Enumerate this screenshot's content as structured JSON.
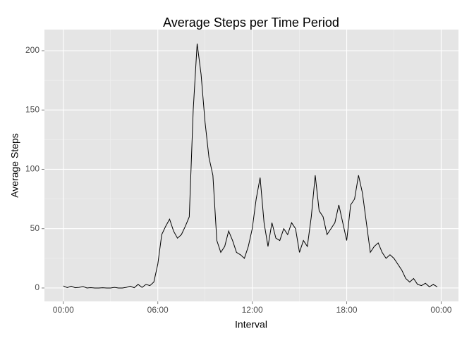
{
  "chart_data": {
    "type": "line",
    "title": "Average Steps per Time Period",
    "x_label": "Interval",
    "y_label": "Average Steps",
    "x": [
      0,
      0.25,
      0.5,
      0.75,
      1,
      1.25,
      1.5,
      1.75,
      2,
      2.25,
      2.5,
      2.75,
      3,
      3.25,
      3.5,
      3.75,
      4,
      4.25,
      4.5,
      4.75,
      5,
      5.25,
      5.5,
      5.75,
      6,
      6.25,
      6.5,
      6.75,
      7,
      7.25,
      7.5,
      7.75,
      8,
      8.25,
      8.5,
      8.75,
      9,
      9.25,
      9.5,
      9.75,
      10,
      10.25,
      10.5,
      10.75,
      11,
      11.25,
      11.5,
      11.75,
      12,
      12.25,
      12.5,
      12.75,
      13,
      13.25,
      13.5,
      13.75,
      14,
      14.25,
      14.5,
      14.75,
      15,
      15.25,
      15.5,
      15.75,
      16,
      16.25,
      16.5,
      16.75,
      17,
      17.25,
      17.5,
      17.75,
      18,
      18.25,
      18.5,
      18.75,
      19,
      19.25,
      19.5,
      19.75,
      20,
      20.25,
      20.5,
      20.75,
      21,
      21.25,
      21.5,
      21.75,
      22,
      22.25,
      22.5,
      22.75,
      23,
      23.25,
      23.5,
      23.75
    ],
    "series": [
      {
        "name": "Average Steps",
        "color": "#000000",
        "values": [
          1.7,
          0.3,
          1.5,
          0.2,
          0.5,
          1.2,
          0,
          0.3,
          0,
          0,
          0.2,
          0,
          0,
          0.5,
          0,
          0,
          0.5,
          1.5,
          0.2,
          3,
          0.5,
          3,
          2,
          5,
          20,
          45,
          52,
          58,
          48,
          42,
          45,
          52,
          60,
          150,
          206,
          180,
          140,
          110,
          95,
          40,
          30,
          35,
          48,
          40,
          30,
          28,
          25,
          35,
          50,
          75,
          93,
          55,
          35,
          55,
          42,
          40,
          50,
          45,
          55,
          50,
          30,
          40,
          35,
          60,
          95,
          65,
          60,
          45,
          50,
          55,
          70,
          55,
          40,
          70,
          75,
          95,
          80,
          55,
          30,
          35,
          38,
          30,
          25,
          28,
          25,
          20,
          15,
          8,
          5,
          8,
          3,
          2,
          4,
          1,
          3,
          1
        ]
      }
    ],
    "xlim": [
      -1.2,
      25.1
    ],
    "xticks": [
      {
        "value": 0,
        "label": "00:00"
      },
      {
        "value": 6,
        "label": "06:00"
      },
      {
        "value": 12,
        "label": "12:00"
      },
      {
        "value": 18,
        "label": "18:00"
      },
      {
        "value": 24,
        "label": "00:00"
      }
    ],
    "ylim": [
      -11.3,
      217.8
    ],
    "yticks": [
      0,
      50,
      100,
      150,
      200
    ],
    "grid": true
  }
}
